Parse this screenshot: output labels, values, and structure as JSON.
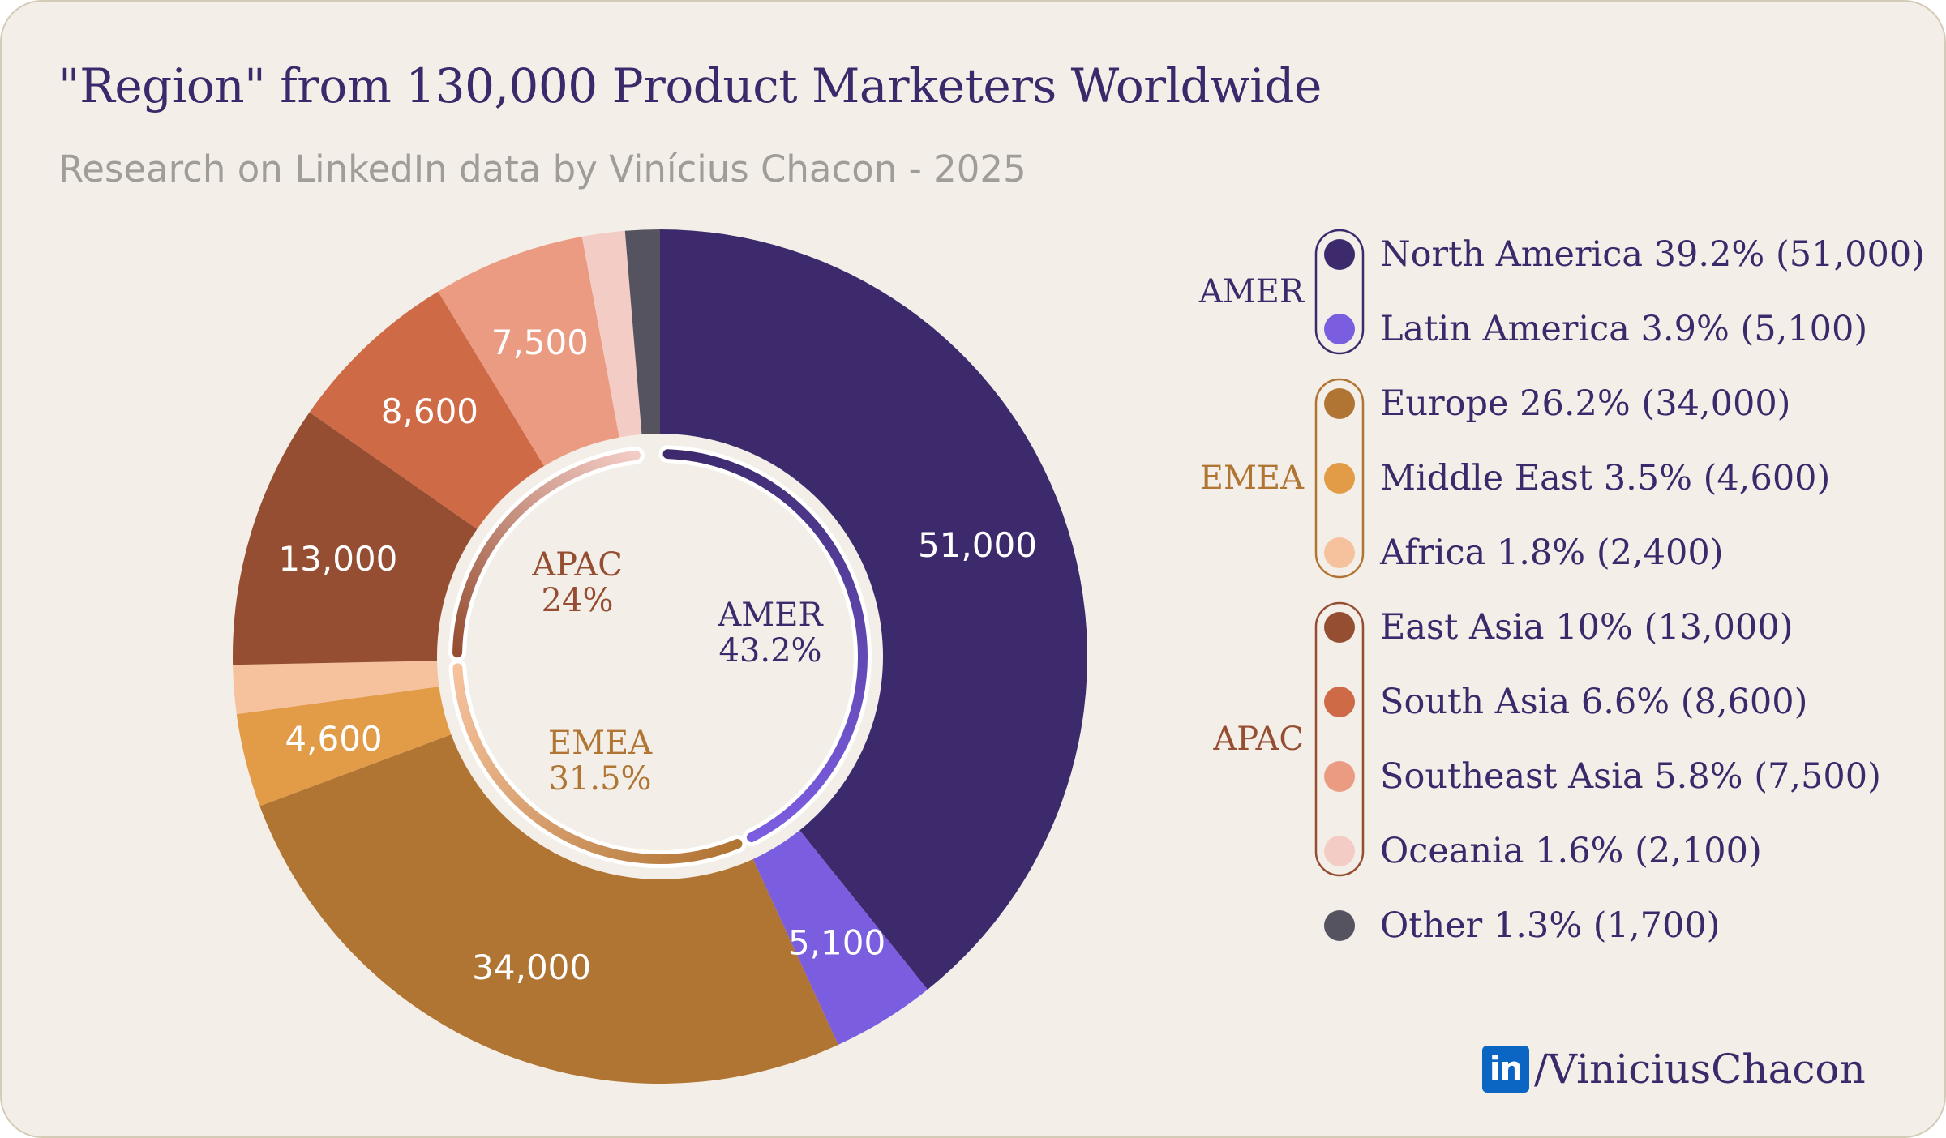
{
  "title": "\"Region\" from 130,000 Product Marketers Worldwide",
  "subtitle": "Research on LinkedIn data by Vinícius Chacon - 2025",
  "brand": {
    "logo_text": "in",
    "handle": "/ViniciusChacon",
    "logo_color": "#0a66c2"
  },
  "colors": {
    "text": "#3b2a6b",
    "background": "#f3efe8"
  },
  "chart_data": {
    "type": "pie",
    "title": "\"Region\" from 130,000 Product Marketers Worldwide",
    "total": 130000,
    "slices": [
      {
        "name": "North America",
        "value": 51000,
        "label": "51,000",
        "percent": "39.2%",
        "count": "51,000",
        "group": "AMER",
        "color": "#3d2a6d",
        "show_label": true
      },
      {
        "name": "Latin America",
        "value": 5100,
        "label": "5,100",
        "percent": "3.9%",
        "count": "5,100",
        "group": "AMER",
        "color": "#7b5de0",
        "show_label": true
      },
      {
        "name": "Europe",
        "value": 34000,
        "label": "34,000",
        "percent": "26.2%",
        "count": "34,000",
        "group": "EMEA",
        "color": "#b07433",
        "show_label": true
      },
      {
        "name": "Middle East",
        "value": 4600,
        "label": "4,600",
        "percent": "3.5%",
        "count": "4,600",
        "group": "EMEA",
        "color": "#e29b47",
        "show_label": true
      },
      {
        "name": "Africa",
        "value": 2400,
        "label": "2,400",
        "percent": "1.8%",
        "count": "2,400",
        "group": "EMEA",
        "color": "#f6c29d",
        "show_label": false
      },
      {
        "name": "East Asia",
        "value": 13000,
        "label": "13,000",
        "percent": "10%",
        "count": "13,000",
        "group": "APAC",
        "color": "#954e32",
        "show_label": true
      },
      {
        "name": "South Asia",
        "value": 8600,
        "label": "8,600",
        "percent": "6.6%",
        "count": "8,600",
        "group": "APAC",
        "color": "#cf6a47",
        "show_label": true
      },
      {
        "name": "Southeast Asia",
        "value": 7500,
        "label": "7,500",
        "percent": "5.8%",
        "count": "7,500",
        "group": "APAC",
        "color": "#eb9b82",
        "show_label": true
      },
      {
        "name": "Oceania",
        "value": 2100,
        "label": "2,100",
        "percent": "1.6%",
        "count": "2,100",
        "group": "APAC",
        "color": "#f3ccc6",
        "show_label": false
      },
      {
        "name": "Other",
        "value": 1700,
        "label": "1,700",
        "percent": "1.3%",
        "count": "1,700",
        "group": "",
        "color": "#565360",
        "show_label": false
      }
    ],
    "groups": [
      {
        "name": "AMER",
        "percent": "43.2%",
        "color": "#3d2a6d",
        "arc_color_start": "#3d2a6d",
        "arc_color_end": "#7b5de0"
      },
      {
        "name": "EMEA",
        "percent": "31.5%",
        "color": "#b07433",
        "arc_color_start": "#b07433",
        "arc_color_end": "#f6c29d"
      },
      {
        "name": "APAC",
        "percent": "24%",
        "color": "#954e32",
        "arc_color_start": "#954e32",
        "arc_color_end": "#f3ccc6"
      }
    ]
  }
}
